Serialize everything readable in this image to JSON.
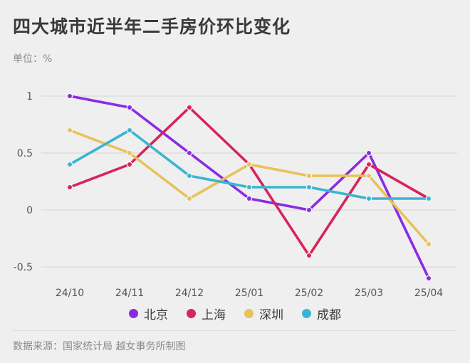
{
  "title": "四大城市近半年二手房价环比变化",
  "unit": "单位：%",
  "source": "数据来源：国家统计局 越女事务所制图",
  "chart_data": {
    "type": "line",
    "title": "四大城市近半年二手房价环比变化",
    "ylabel": "单位：%",
    "xlabel": "",
    "categories": [
      "24/10",
      "24/11",
      "24/12",
      "25/01",
      "25/02",
      "25/03",
      "25/04"
    ],
    "y_ticks": [
      1,
      0.5,
      0,
      -0.5
    ],
    "y_tick_labels": [
      "1",
      "0.5",
      "0",
      "-0.5"
    ],
    "ylim": [
      -0.6,
      1.0
    ],
    "grid": true,
    "legend_position": "bottom",
    "series": [
      {
        "name": "北京",
        "color": "#8a2be2",
        "values": [
          1.0,
          0.9,
          0.5,
          0.1,
          0.0,
          0.5,
          -0.6
        ]
      },
      {
        "name": "上海",
        "color": "#d7245a",
        "values": [
          0.2,
          0.4,
          0.9,
          0.4,
          -0.4,
          0.4,
          0.1
        ]
      },
      {
        "name": "深圳",
        "color": "#e8c25a",
        "values": [
          0.7,
          0.5,
          0.1,
          0.4,
          0.3,
          0.3,
          -0.3
        ]
      },
      {
        "name": "成都",
        "color": "#3ab4d2",
        "values": [
          0.4,
          0.7,
          0.3,
          0.2,
          0.2,
          0.1,
          0.1
        ]
      }
    ]
  }
}
